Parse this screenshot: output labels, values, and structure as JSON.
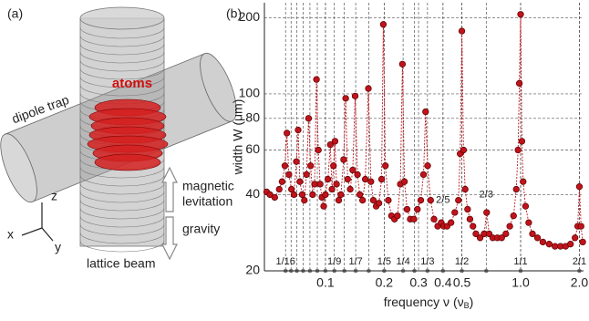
{
  "panel_a": {
    "label": "(a)",
    "atoms": "atoms",
    "dipole": "dipole trap",
    "z": "z",
    "x": "x",
    "y": "y",
    "levitation": [
      "magnetic",
      "levitation"
    ],
    "gravity": "gravity",
    "lattice": "lattice beam"
  },
  "chart_data": {
    "type": "scatter-line",
    "label": "(b)",
    "xlabel": "frequency ν (ν",
    "xlabel_sub": "B",
    "xlabel_end": ")",
    "ylabel": "width W (μm)",
    "xscale": "log",
    "yscale": "log",
    "grid": true,
    "color": "#c0131b",
    "xlim": [
      0.0487,
      2.1
    ],
    "ylim": [
      20,
      229
    ],
    "xticks": [
      0.1,
      0.2,
      0.3,
      0.4,
      0.5,
      {
        "value": 1,
        "label": "1.0"
      },
      {
        "value": 2,
        "label": "2.0"
      }
    ],
    "yticks": [
      20,
      40,
      60,
      80,
      100,
      200
    ],
    "resonances": [
      0.0625,
      0.0667,
      0.0714,
      0.0769,
      0.0833,
      0.0909,
      0.1,
      0.1111,
      0.125,
      0.1429,
      0.1667,
      0.2,
      0.25,
      0.2857,
      0.3333,
      0.4,
      0.5,
      0.6667,
      1,
      2
    ],
    "resonance_labels": [
      {
        "value": 0.0625,
        "label": "1/16"
      },
      {
        "value": 0.1111,
        "label": "1/9"
      },
      {
        "value": 0.1429,
        "label": "1/7"
      },
      {
        "value": 0.2,
        "label": "1/5"
      },
      {
        "value": 0.25,
        "label": "1/4"
      },
      {
        "value": 0.3333,
        "label": "1/3"
      },
      {
        "value": 0.5,
        "label": "1/2"
      },
      {
        "value": 1,
        "label": "1/1"
      },
      {
        "value": 2,
        "label": "2/1"
      }
    ],
    "annotations": [
      {
        "text": "2/5",
        "x": 0.4,
        "y": 38
      },
      {
        "text": "2/3",
        "x": 0.6667,
        "y": 40
      }
    ],
    "x": [
      0.05,
      0.052,
      0.055,
      0.058,
      0.06,
      0.062,
      0.0635,
      0.065,
      0.067,
      0.069,
      0.071,
      0.0725,
      0.074,
      0.076,
      0.078,
      0.08,
      0.082,
      0.084,
      0.086,
      0.088,
      0.09,
      0.092,
      0.094,
      0.096,
      0.098,
      0.1,
      0.103,
      0.106,
      0.108,
      0.11,
      0.112,
      0.114,
      0.117,
      0.12,
      0.124,
      0.127,
      0.13,
      0.134,
      0.138,
      0.142,
      0.146,
      0.15,
      0.155,
      0.16,
      0.166,
      0.171,
      0.176,
      0.182,
      0.188,
      0.194,
      0.198,
      0.203,
      0.21,
      0.218,
      0.226,
      0.234,
      0.242,
      0.248,
      0.254,
      0.262,
      0.272,
      0.284,
      0.296,
      0.308,
      0.318,
      0.326,
      0.334,
      0.346,
      0.36,
      0.376,
      0.392,
      0.404,
      0.42,
      0.44,
      0.46,
      0.48,
      0.49,
      0.5,
      0.51,
      0.52,
      0.535,
      0.55,
      0.57,
      0.59,
      0.62,
      0.65,
      0.67,
      0.69,
      0.72,
      0.76,
      0.8,
      0.84,
      0.88,
      0.92,
      0.95,
      0.97,
      0.985,
      1.0,
      1.015,
      1.03,
      1.06,
      1.1,
      1.15,
      1.22,
      1.3,
      1.4,
      1.5,
      1.6,
      1.7,
      1.8,
      1.9,
      1.96,
      2.0,
      2.04,
      2.08
    ],
    "values": [
      41,
      40,
      39,
      42,
      45,
      52,
      70,
      48,
      42,
      40,
      54,
      72,
      45,
      40,
      38,
      48,
      80,
      52,
      40,
      44,
      114,
      60,
      44,
      39,
      36,
      40,
      46,
      63,
      42,
      52,
      65,
      44,
      38,
      40,
      55,
      96,
      46,
      42,
      50,
      98,
      48,
      40,
      38,
      46,
      105,
      45,
      38,
      36,
      37,
      46,
      188,
      52,
      38,
      33,
      32,
      33,
      44,
      131,
      45,
      35,
      32,
      32,
      35,
      38,
      48,
      85,
      52,
      38,
      32,
      30,
      31,
      30,
      30,
      31,
      34,
      38,
      58,
      177,
      60,
      42,
      35,
      32,
      30,
      28,
      27,
      28,
      34,
      28,
      27,
      27,
      27,
      28,
      30,
      33,
      42,
      60,
      110,
      206,
      65,
      45,
      36,
      31,
      28,
      27,
      26,
      25.5,
      25,
      25,
      25,
      25.5,
      27,
      30,
      43,
      30,
      26
    ]
  }
}
